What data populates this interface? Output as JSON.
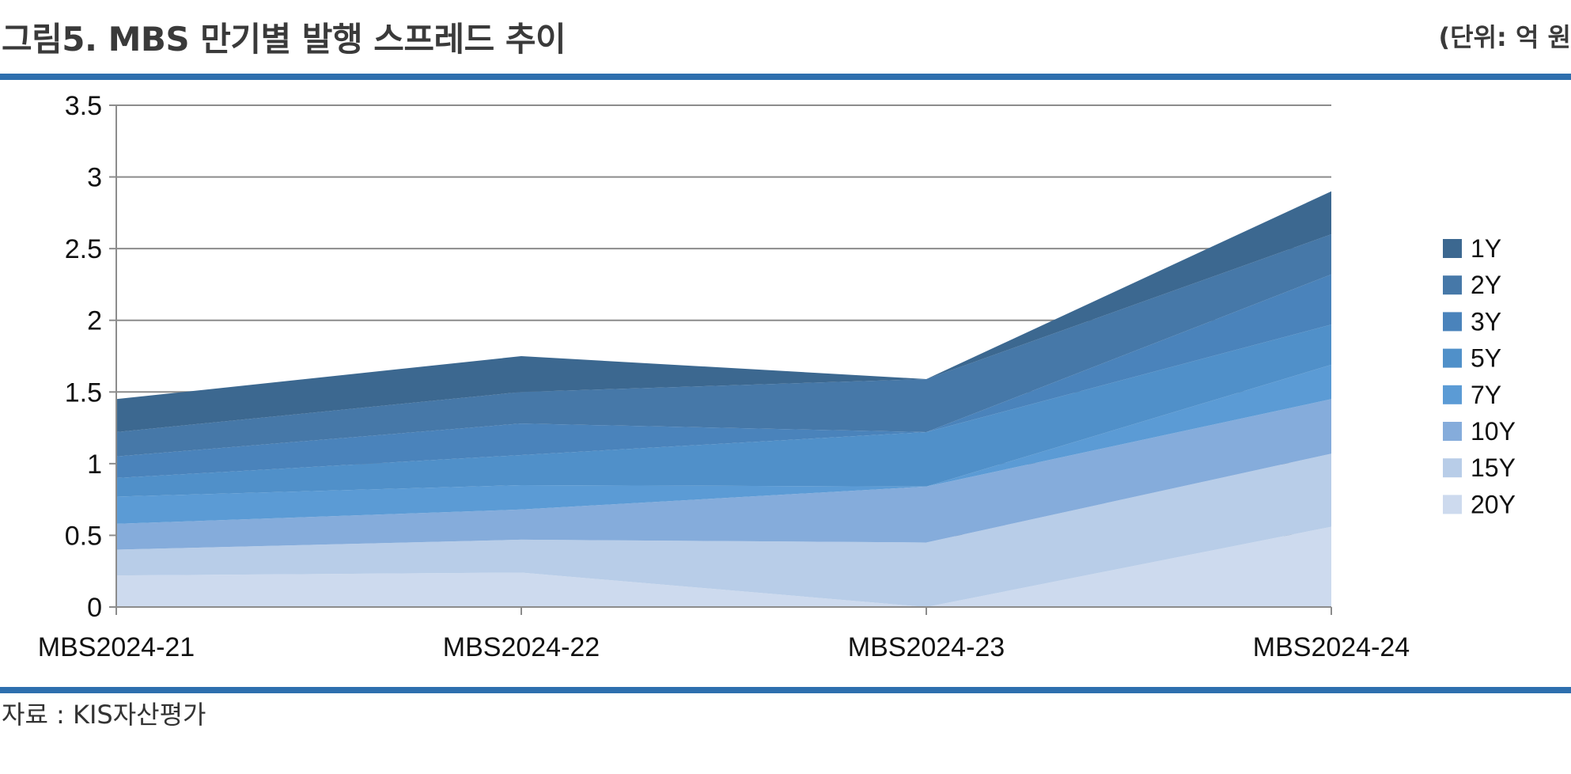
{
  "figure": {
    "title": "그림5. MBS 만기별 발행 스프레드 추이",
    "unit": "(단위: 억 원",
    "source": "자료 : KIS자산평가"
  },
  "chart_data": {
    "type": "area",
    "stacked": true,
    "categories": [
      "MBS2024-21",
      "MBS2024-22",
      "MBS2024-23",
      "MBS2024-24"
    ],
    "ylim": [
      0,
      3.5
    ],
    "yticks": [
      "0",
      "0.5",
      "1",
      "1.5",
      "2",
      "2.5",
      "3",
      "3.5"
    ],
    "grid": true,
    "legend_position": "right",
    "series": [
      {
        "name": "20Y",
        "color": "#cddaee",
        "values": [
          0.22,
          0.24,
          0.0,
          0.56
        ]
      },
      {
        "name": "15Y",
        "color": "#b8cde8",
        "values": [
          0.18,
          0.23,
          0.45,
          0.51
        ]
      },
      {
        "name": "10Y",
        "color": "#85acdb",
        "values": [
          0.18,
          0.21,
          0.39,
          0.38
        ]
      },
      {
        "name": "7Y",
        "color": "#5b9bd5",
        "values": [
          0.19,
          0.17,
          0.0,
          0.24
        ]
      },
      {
        "name": "5Y",
        "color": "#5090c9",
        "values": [
          0.13,
          0.21,
          0.38,
          0.28
        ]
      },
      {
        "name": "3Y",
        "color": "#4a83bb",
        "values": [
          0.15,
          0.22,
          0.0,
          0.35
        ]
      },
      {
        "name": "2Y",
        "color": "#4678a8",
        "values": [
          0.17,
          0.22,
          0.37,
          0.28
        ]
      },
      {
        "name": "1Y",
        "color": "#3c6890",
        "values": [
          0.23,
          0.25,
          0.0,
          0.3
        ]
      }
    ]
  }
}
